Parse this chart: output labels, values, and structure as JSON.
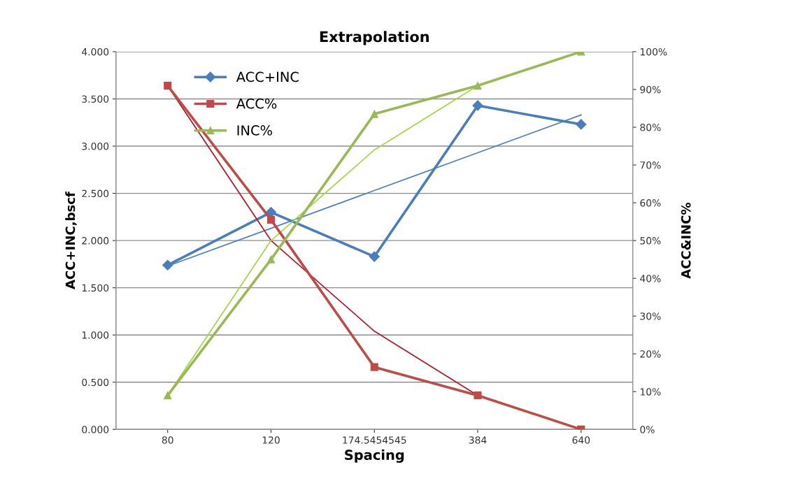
{
  "chart_data": {
    "type": "line",
    "title": "Extrapolation",
    "xlabel": "Spacing",
    "ylabel": "ACC+INC,bscf",
    "y2label": "ACC&INC%",
    "categories": [
      "80",
      "120",
      "174.5454545",
      "384",
      "640"
    ],
    "series": [
      {
        "name": "ACC+INC",
        "color": "#4a7ebb",
        "marker": "diamond",
        "values": [
          1.74,
          2.3,
          1.83,
          3.43,
          3.23
        ]
      },
      {
        "name": "ACC%",
        "color": "#be4b48",
        "marker": "square",
        "axis": "y2",
        "values": [
          91,
          55.5,
          16.5,
          9,
          0
        ]
      },
      {
        "name": "INC%",
        "color": "#98b954",
        "marker": "triangle",
        "axis": "y2",
        "values": [
          9,
          45,
          83.5,
          91,
          100
        ]
      },
      {
        "color": "#4f81bd",
        "marker": "none",
        "values": [
          1.73,
          2.13,
          2.53,
          2.93,
          3.33
        ]
      },
      {
        "color": "#b01e2a",
        "marker": "none",
        "axis": "y2",
        "values": [
          91,
          50,
          26,
          9,
          null
        ]
      },
      {
        "color": "#a4d64a",
        "marker": "none",
        "axis": "y2",
        "values": [
          9,
          50,
          74,
          91,
          null
        ]
      }
    ],
    "ylim": [
      0,
      4
    ],
    "yticks": [
      {
        "value": 0,
        "label": "0.000"
      },
      {
        "value": 0.5,
        "label": "0.500"
      },
      {
        "value": 1,
        "label": "1.000"
      },
      {
        "value": 1.5,
        "label": "1.500"
      },
      {
        "value": 2,
        "label": "2.000"
      },
      {
        "value": 2.5,
        "label": "2.500"
      },
      {
        "value": 3,
        "label": "3.000"
      },
      {
        "value": 3.5,
        "label": "3.500"
      },
      {
        "value": 4,
        "label": "4.000"
      }
    ],
    "y2lim": [
      0,
      100
    ],
    "y2ticks": [
      {
        "value": 0,
        "label": "0%"
      },
      {
        "value": 10,
        "label": "10%"
      },
      {
        "value": 20,
        "label": "20%"
      },
      {
        "value": 30,
        "label": "30%"
      },
      {
        "value": 40,
        "label": "40%"
      },
      {
        "value": 50,
        "label": "50%"
      },
      {
        "value": 60,
        "label": "60%"
      },
      {
        "value": 70,
        "label": "70%"
      },
      {
        "value": 80,
        "label": "80%"
      },
      {
        "value": 90,
        "label": "90%"
      },
      {
        "value": 100,
        "label": "100%"
      }
    ],
    "grid": "y",
    "legend": "top left",
    "line_style": "solid"
  }
}
